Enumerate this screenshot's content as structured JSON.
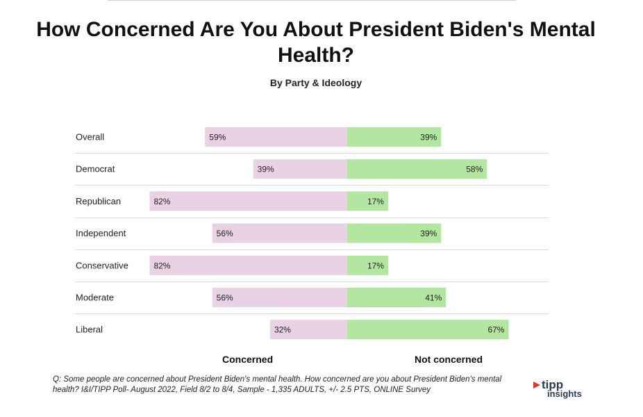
{
  "title": "How Concerned Are You About President Biden's Mental Health?",
  "subtitle": "By Party & Ideology",
  "colors": {
    "concerned": "#e8d2e4",
    "not_concerned": "#b3e6a0",
    "gridline": "#dcdcdc"
  },
  "axis_labels": {
    "left": "Concerned",
    "right": "Not concerned"
  },
  "footnote": "Q: Some people are concerned about President Biden's mental health. How concerned are you about President Biden's mental health? I&I/TIPP Poll- August 2022, Field 8/2 to 8/4, Sample - 1,335 ADULTS, +/- 2.5 PTS, ONLINE Survey",
  "logo": {
    "line1": "tipp",
    "line2": "insights"
  },
  "chart_data": {
    "type": "bar",
    "orientation": "diverging-horizontal",
    "categories": [
      "Overall",
      "Democrat",
      "Republican",
      "Independent",
      "Conservative",
      "Moderate",
      "Liberal"
    ],
    "series": [
      {
        "name": "Concerned",
        "values": [
          59,
          39,
          82,
          56,
          82,
          56,
          32
        ]
      },
      {
        "name": "Not concerned",
        "values": [
          39,
          58,
          17,
          39,
          17,
          41,
          67
        ]
      }
    ],
    "value_format": "{v}%",
    "grid": true
  }
}
